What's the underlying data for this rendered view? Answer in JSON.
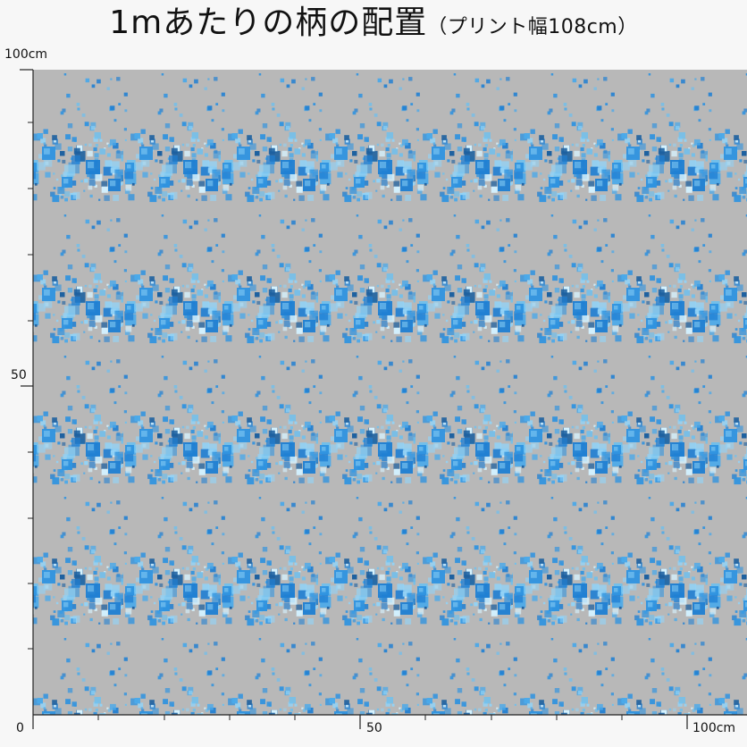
{
  "title": {
    "main": "1mあたりの柄の配置",
    "sub": "（プリント幅108cm）"
  },
  "y_axis": {
    "top_label": "100cm",
    "mid_label": "50"
  },
  "x_axis": {
    "origin_label": "0",
    "mid_label": "50",
    "end_label": "100cm"
  },
  "pattern": {
    "background_color": "#b8b8b8",
    "motif_colors": [
      "#1f7fd3",
      "#2f93e0",
      "#4aa9ea",
      "#6bc0f0",
      "#93d2f5",
      "#1b5f9f",
      "#d7f3ff"
    ]
  }
}
